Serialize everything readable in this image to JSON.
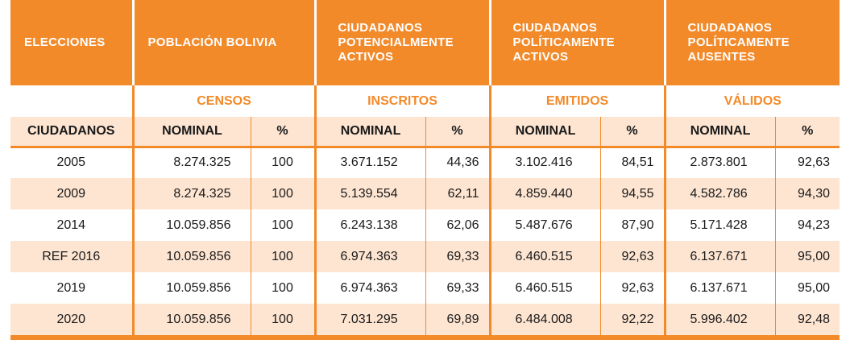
{
  "header": {
    "elecciones": "ELECCIONES",
    "poblacion": "POBLACIÓN  BOLIVIA",
    "potenciales": [
      "CIUDADANOS",
      "POTENCIALMENTE",
      "ACTIVOS"
    ],
    "activos": [
      "CIUDADANOS",
      "POLÍTICAMENTE",
      "ACTIVOS"
    ],
    "ausentes": [
      "CIUDADANOS",
      "POLÍTICAMENTE",
      "AUSENTES"
    ]
  },
  "subheader": {
    "censos": "CENSOS",
    "inscritos": "INSCRITOS",
    "emitidos": "EMITIDOS",
    "validos": "VÁLIDOS"
  },
  "columns": {
    "ciudadanos": "CIUDADANOS",
    "nominal": "NOMINAL",
    "pct": "%"
  },
  "rows": [
    {
      "year": "2005",
      "censos_nominal": "8.274.325",
      "censos_pct": "100",
      "inscritos_nominal": "3.671.152",
      "inscritos_pct": "44,36",
      "emitidos_nominal": "3.102.416",
      "emitidos_pct": "84,51",
      "validos_nominal": "2.873.801",
      "validos_pct": "92,63"
    },
    {
      "year": "2009",
      "censos_nominal": "8.274.325",
      "censos_pct": "100",
      "inscritos_nominal": "5.139.554",
      "inscritos_pct": "62,11",
      "emitidos_nominal": "4.859.440",
      "emitidos_pct": "94,55",
      "validos_nominal": "4.582.786",
      "validos_pct": "94,30"
    },
    {
      "year": "2014",
      "censos_nominal": "10.059.856",
      "censos_pct": "100",
      "inscritos_nominal": "6.243.138",
      "inscritos_pct": "62,06",
      "emitidos_nominal": "5.487.676",
      "emitidos_pct": "87,90",
      "validos_nominal": "5.171.428",
      "validos_pct": "94,23"
    },
    {
      "year": "REF 2016",
      "censos_nominal": "10.059.856",
      "censos_pct": "100",
      "inscritos_nominal": "6.974.363",
      "inscritos_pct": "69,33",
      "emitidos_nominal": "6.460.515",
      "emitidos_pct": "92,63",
      "validos_nominal": "6.137.671",
      "validos_pct": "95,00"
    },
    {
      "year": "2019",
      "censos_nominal": "10.059.856",
      "censos_pct": "100",
      "inscritos_nominal": "6.974.363",
      "inscritos_pct": "69,33",
      "emitidos_nominal": "6.460.515",
      "emitidos_pct": "92,63",
      "validos_nominal": "6.137.671",
      "validos_pct": "95,00"
    },
    {
      "year": "2020",
      "censos_nominal": "10.059.856",
      "censos_pct": "100",
      "inscritos_nominal": "7.031.295",
      "inscritos_pct": "69,89",
      "emitidos_nominal": "6.484.008",
      "emitidos_pct": "92,22",
      "validos_nominal": "5.996.402",
      "validos_pct": "92,48"
    }
  ],
  "colors": {
    "accent": "#f28a2a",
    "stripe": "#fde5d2"
  }
}
